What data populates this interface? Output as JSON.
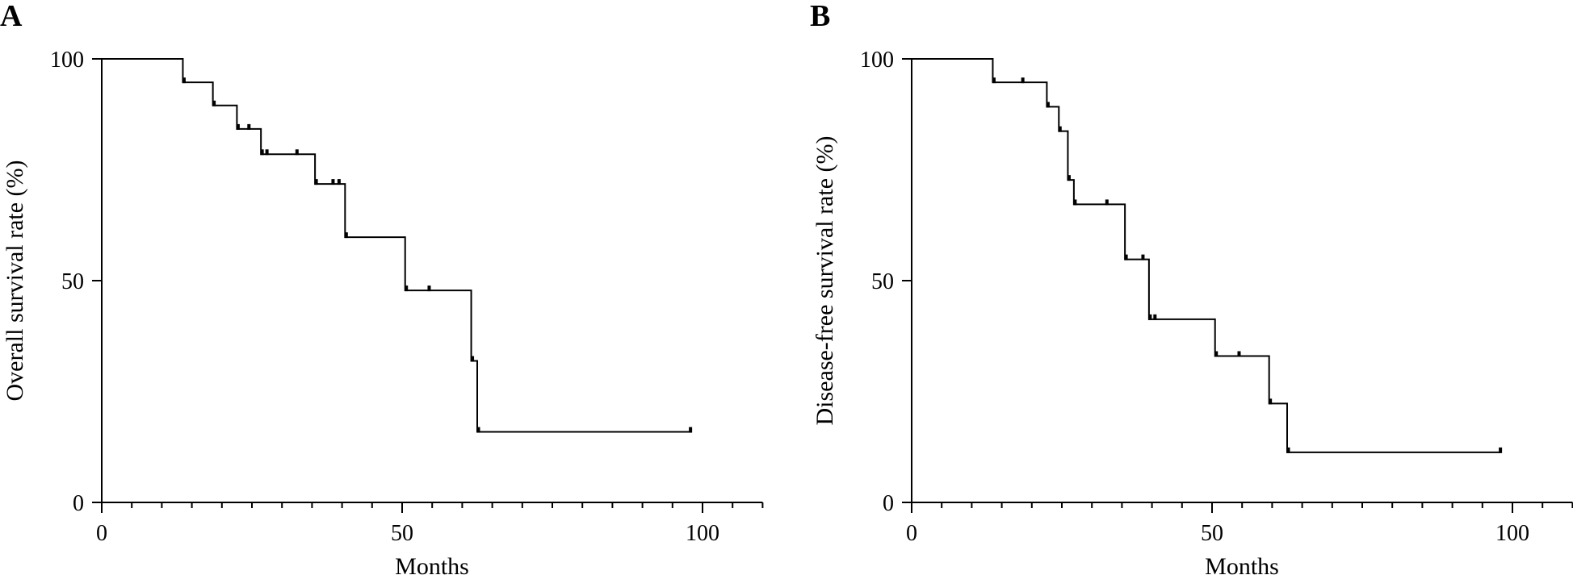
{
  "chart_data": [
    {
      "type": "line",
      "panel_label": "A",
      "xlabel": "Months",
      "ylabel": "Overall survival rate (%)",
      "xlim": [
        0,
        110
      ],
      "ylim": [
        0,
        100
      ],
      "x_ticks": [
        0,
        50,
        100
      ],
      "y_ticks": [
        0,
        50,
        100
      ],
      "x_minor_step": 5,
      "grid": false,
      "series": [
        {
          "steps": [
            {
              "x": 0,
              "y": 100
            },
            {
              "x": 13.5,
              "y": 94.7
            },
            {
              "x": 18.5,
              "y": 89.5
            },
            {
              "x": 22.5,
              "y": 84.2
            },
            {
              "x": 26.5,
              "y": 78.5
            },
            {
              "x": 35.5,
              "y": 71.8
            },
            {
              "x": 40.5,
              "y": 59.8
            },
            {
              "x": 50.5,
              "y": 47.8
            },
            {
              "x": 61.5,
              "y": 31.9
            },
            {
              "x": 62.5,
              "y": 15.9
            }
          ],
          "end_x": 98,
          "censored": [
            {
              "x": 13.7,
              "y": 94.7
            },
            {
              "x": 18.7,
              "y": 89.5
            },
            {
              "x": 22.7,
              "y": 84.2
            },
            {
              "x": 24.5,
              "y": 84.2
            },
            {
              "x": 26.7,
              "y": 78.5
            },
            {
              "x": 27.5,
              "y": 78.5
            },
            {
              "x": 32.5,
              "y": 78.5
            },
            {
              "x": 35.7,
              "y": 71.8
            },
            {
              "x": 38.5,
              "y": 71.8
            },
            {
              "x": 39.5,
              "y": 71.8
            },
            {
              "x": 40.7,
              "y": 59.8
            },
            {
              "x": 50.7,
              "y": 47.8
            },
            {
              "x": 54.5,
              "y": 47.8
            },
            {
              "x": 61.7,
              "y": 31.9
            },
            {
              "x": 62.7,
              "y": 15.9
            },
            {
              "x": 98,
              "y": 15.9
            }
          ]
        }
      ]
    },
    {
      "type": "line",
      "panel_label": "B",
      "xlabel": "Months",
      "ylabel": "Disease-free survival rate (%)",
      "xlim": [
        0,
        110
      ],
      "ylim": [
        0,
        100
      ],
      "x_ticks": [
        0,
        50,
        100
      ],
      "y_ticks": [
        0,
        50,
        100
      ],
      "x_minor_step": 5,
      "grid": false,
      "series": [
        {
          "steps": [
            {
              "x": 0,
              "y": 100
            },
            {
              "x": 13.5,
              "y": 94.7
            },
            {
              "x": 22.5,
              "y": 89.2
            },
            {
              "x": 24.5,
              "y": 83.7
            },
            {
              "x": 26.0,
              "y": 72.7
            },
            {
              "x": 27.0,
              "y": 67.2
            },
            {
              "x": 35.5,
              "y": 54.8
            },
            {
              "x": 39.5,
              "y": 41.3
            },
            {
              "x": 50.5,
              "y": 33.0
            },
            {
              "x": 59.5,
              "y": 22.3
            },
            {
              "x": 62.5,
              "y": 11.3
            }
          ],
          "end_x": 98,
          "censored": [
            {
              "x": 13.7,
              "y": 94.7
            },
            {
              "x": 18.5,
              "y": 94.7
            },
            {
              "x": 22.7,
              "y": 89.2
            },
            {
              "x": 24.7,
              "y": 83.7
            },
            {
              "x": 26.2,
              "y": 72.7
            },
            {
              "x": 27.2,
              "y": 67.2
            },
            {
              "x": 32.5,
              "y": 67.2
            },
            {
              "x": 35.7,
              "y": 54.8
            },
            {
              "x": 38.5,
              "y": 54.8
            },
            {
              "x": 39.7,
              "y": 41.3
            },
            {
              "x": 40.5,
              "y": 41.3
            },
            {
              "x": 50.7,
              "y": 33.0
            },
            {
              "x": 54.5,
              "y": 33.0
            },
            {
              "x": 59.7,
              "y": 22.3
            },
            {
              "x": 62.7,
              "y": 11.3
            },
            {
              "x": 98,
              "y": 11.3
            }
          ]
        }
      ]
    }
  ]
}
